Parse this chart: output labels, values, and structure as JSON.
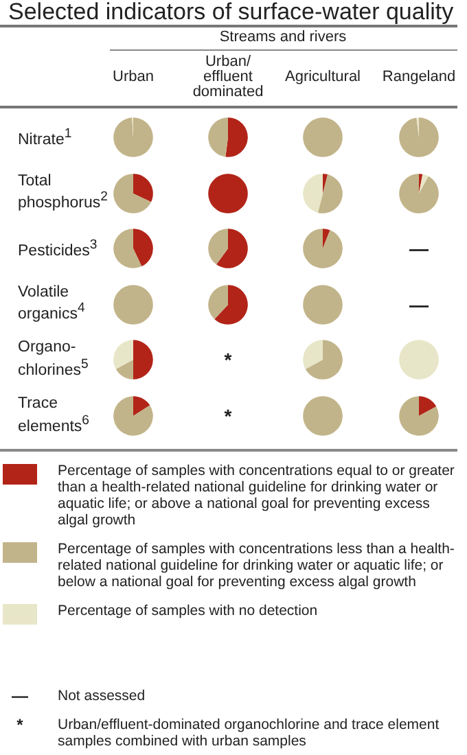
{
  "chart_data": [
    {
      "type": "other",
      "title": "Selected indicators of surface-water quality",
      "subtitle": "Streams and rivers",
      "categories": [
        "Urban",
        "Urban/effluent dominated",
        "Agricultural",
        "Rangeland"
      ],
      "y_categories": [
        "Nitrate$^{1}$",
        "Total phosphorus$^{2}$",
        "Pesticides$^{3}$",
        "Volatile organics$^{4}$",
        "Organo-chlorines$^{5}$",
        "Trace elements$^{6}$"
      ],
      "cell_labels": [
        [
          null,
          null,
          null,
          null
        ],
        [
          null,
          null,
          null,
          null
        ],
        [
          null,
          null,
          null,
          "—"
        ],
        [
          null,
          null,
          null,
          "—"
        ],
        [
          null,
          "*",
          null,
          null
        ],
        [
          null,
          "*",
          null,
          null
        ]
      ],
      "annotations": [
        "Not assessed",
        "Urban/effluent-dominated organochlorine and trace element samples combined with urban samples"
      ]
    },
    {
      "type": "pie",
      "legend": "bottom",
      "categories": [
        "Percentage of samples with concentrations equal to or greater than a health-related national guideline for drinking water or aquatic life; or above a national goal for preventing excess algal growth",
        "Percentage of samples with concentrations less than a health-related national guideline for drinking water or aquatic life; or below a national goal for preventing excess algal growth",
        "Percentage of samples with no detection"
      ],
      "values": [
        0,
        99,
        1
      ],
      "colors": [
        "#b22418",
        "#c2b48a",
        "#e8e6c8"
      ]
    },
    {
      "type": "pie",
      "categories": [
        null,
        null
      ],
      "values": [
        52,
        48
      ],
      "colors": [
        "#b22418",
        "#c2b48a"
      ]
    },
    {
      "type": "pie",
      "categories": [
        null
      ],
      "values": [
        100
      ],
      "colors": [
        "#c2b48a"
      ]
    },
    {
      "type": "pie",
      "categories": [
        null,
        null
      ],
      "values": [
        98,
        2
      ],
      "colors": [
        "#c2b48a",
        "#e8e6c8"
      ]
    },
    {
      "type": "pie",
      "categories": [
        null,
        null
      ],
      "values": [
        32,
        68
      ],
      "colors": [
        "#b22418",
        "#c2b48a"
      ]
    },
    {
      "type": "pie",
      "categories": [
        null
      ],
      "values": [
        100
      ],
      "colors": [
        "#b22418"
      ]
    },
    {
      "type": "pie",
      "categories": [
        null,
        null,
        null
      ],
      "values": [
        4,
        50,
        46
      ],
      "colors": [
        "#b22418",
        "#c2b48a",
        "#e8e6c8"
      ]
    },
    {
      "type": "pie",
      "categories": [
        null,
        null,
        null
      ],
      "values": [
        3,
        5,
        92
      ],
      "colors": [
        "#b22418",
        "#e8e6c8",
        "#c2b48a"
      ]
    },
    {
      "type": "pie",
      "categories": [
        null,
        null
      ],
      "values": [
        43,
        57
      ],
      "colors": [
        "#b22418",
        "#c2b48a"
      ]
    },
    {
      "type": "pie",
      "categories": [
        null,
        null
      ],
      "values": [
        60,
        40
      ],
      "colors": [
        "#b22418",
        "#c2b48a"
      ]
    },
    {
      "type": "pie",
      "categories": [
        null,
        null
      ],
      "values": [
        6,
        94
      ],
      "colors": [
        "#b22418",
        "#c2b48a"
      ]
    },
    {
      "type": "pie",
      "categories": [
        null
      ],
      "values": [
        100
      ],
      "colors": [
        "#c2b48a"
      ]
    },
    {
      "type": "pie",
      "categories": [
        null,
        null
      ],
      "values": [
        62,
        38
      ],
      "colors": [
        "#b22418",
        "#c2b48a"
      ]
    },
    {
      "type": "pie",
      "categories": [
        null
      ],
      "values": [
        100
      ],
      "colors": [
        "#c2b48a"
      ]
    },
    {
      "type": "pie",
      "categories": [
        null,
        null,
        null
      ],
      "values": [
        50,
        17,
        33
      ],
      "colors": [
        "#b22418",
        "#c2b48a",
        "#e8e6c8"
      ]
    },
    {
      "type": "pie",
      "categories": [
        null,
        null
      ],
      "values": [
        67,
        33
      ],
      "colors": [
        "#c2b48a",
        "#e8e6c8"
      ]
    },
    {
      "type": "pie",
      "categories": [
        null
      ],
      "values": [
        100
      ],
      "colors": [
        "#e8e6c8"
      ]
    },
    {
      "type": "pie",
      "categories": [
        null,
        null
      ],
      "values": [
        16,
        84
      ],
      "colors": [
        "#b22418",
        "#c2b48a"
      ]
    },
    {
      "type": "pie",
      "categories": [
        null
      ],
      "values": [
        100
      ],
      "colors": [
        "#c2b48a"
      ]
    },
    {
      "type": "pie",
      "categories": [
        null,
        null
      ],
      "values": [
        17,
        83
      ],
      "colors": [
        "#b22418",
        "#c2b48a"
      ]
    }
  ]
}
